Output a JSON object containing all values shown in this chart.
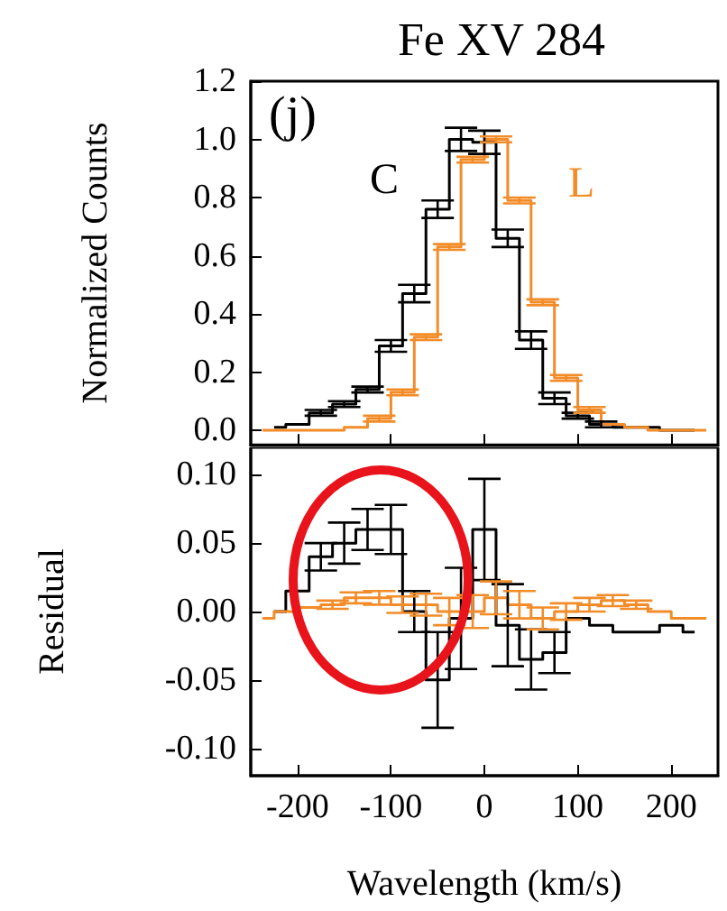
{
  "chart_data": [
    {
      "type": "step",
      "title": "Fe XV 284",
      "ylabel": "Normalized Counts",
      "annotations": [
        "(j)"
      ],
      "xlim": [
        -250,
        250
      ],
      "xticks": [
        -200,
        -100,
        0,
        100,
        200
      ],
      "ylim": [
        -0.05,
        1.2
      ],
      "yticks": [
        {
          "value": 0,
          "label": "0.0"
        },
        {
          "value": 0.2,
          "label": "0.2"
        },
        {
          "value": 0.4,
          "label": "0.4"
        },
        {
          "value": 0.6,
          "label": "0.6"
        },
        {
          "value": 0.8,
          "label": "0.8"
        },
        {
          "value": 1,
          "label": "1.0"
        },
        {
          "value": 1.2,
          "label": "1.2"
        }
      ],
      "tick_labels": "y",
      "legend": false,
      "grid": false,
      "marker": "none",
      "series": [
        {
          "name": "C",
          "color": "#000000",
          "x": [
            -225,
            -200,
            -175,
            -150,
            -125,
            -100,
            -75,
            -50,
            -25,
            0,
            25,
            50,
            75,
            100,
            125,
            150,
            175,
            200,
            225
          ],
          "values": [
            0.01,
            0.02,
            0.06,
            0.09,
            0.14,
            0.29,
            0.47,
            0.76,
            1.0,
            0.99,
            0.66,
            0.31,
            0.11,
            0.05,
            0.02,
            0.01,
            0.01,
            0.0,
            0.0
          ],
          "errors": [
            null,
            null,
            0.01,
            0.01,
            0.01,
            0.02,
            0.03,
            0.03,
            0.04,
            0.04,
            0.03,
            0.03,
            0.02,
            0.01,
            0.01,
            null,
            null,
            null,
            null
          ]
        },
        {
          "name": "L",
          "color": "#f28c28",
          "x": [
            -237.5,
            -212.5,
            -187.5,
            -162.5,
            -137.5,
            -112.5,
            -87.5,
            -62.5,
            -37.5,
            -12.5,
            12.5,
            37.5,
            62.5,
            87.5,
            112.5,
            137.5,
            162.5,
            187.5,
            212.5,
            237.5
          ],
          "values": [
            0.0,
            0.0,
            0.0,
            0.0,
            0.01,
            0.04,
            0.13,
            0.32,
            0.63,
            0.93,
            1.0,
            0.79,
            0.44,
            0.18,
            0.07,
            0.02,
            0.01,
            0.0,
            0.0,
            0.0
          ],
          "errors": [
            null,
            null,
            null,
            null,
            null,
            0.01,
            0.01,
            0.01,
            0.01,
            0.01,
            0.01,
            0.01,
            0.01,
            0.01,
            0.01,
            null,
            null,
            null,
            null,
            null
          ]
        }
      ]
    },
    {
      "type": "step",
      "xlabel": "Wavelength (km/s)",
      "ylabel": "Residual",
      "xlim": [
        -250,
        250
      ],
      "xticks": [
        -200,
        -100,
        0,
        100,
        200
      ],
      "ylim": [
        -0.12,
        0.12
      ],
      "yticks": [
        {
          "value": -0.1,
          "label": "-0.10"
        },
        {
          "value": -0.05,
          "label": "-0.05"
        },
        {
          "value": 0,
          "label": "0.00"
        },
        {
          "value": 0.05,
          "label": "0.05"
        },
        {
          "value": 0.1,
          "label": "0.10"
        }
      ],
      "legend": false,
      "grid": false,
      "marker": "none",
      "series": [
        {
          "color": "#000000",
          "x": [
            -225,
            -200,
            -175,
            -150,
            -125,
            -100,
            -75,
            -50,
            -25,
            0,
            25,
            50,
            75,
            100,
            125,
            150,
            175,
            200,
            225
          ],
          "values": [
            0.0,
            0.015,
            0.04,
            0.05,
            0.06,
            0.06,
            0.0,
            -0.05,
            -0.005,
            0.06,
            -0.01,
            -0.035,
            -0.03,
            -0.005,
            -0.01,
            -0.015,
            -0.015,
            -0.01,
            -0.015
          ],
          "errors": [
            null,
            null,
            0.01,
            0.015,
            0.015,
            0.018,
            0.015,
            0.035,
            0.037,
            0.037,
            0.03,
            0.022,
            0.015,
            null,
            null,
            null,
            null,
            null,
            null
          ]
        },
        {
          "color": "#f28c28",
          "x": [
            -237.5,
            -212.5,
            -187.5,
            -162.5,
            -137.5,
            -112.5,
            -87.5,
            -62.5,
            -37.5,
            -12.5,
            12.5,
            37.5,
            62.5,
            87.5,
            112.5,
            137.5,
            162.5,
            187.5,
            212.5,
            237.5
          ],
          "values": [
            -0.005,
            0.0,
            0.003,
            0.005,
            0.01,
            0.01,
            0.005,
            0.005,
            0.0,
            0.0,
            0.01,
            0.005,
            -0.005,
            0.0,
            0.005,
            0.008,
            0.005,
            0.0,
            -0.005,
            -0.005
          ],
          "errors": [
            null,
            null,
            null,
            0.003,
            0.004,
            0.005,
            0.006,
            0.008,
            0.01,
            0.012,
            0.012,
            0.01,
            0.008,
            0.006,
            0.005,
            0.004,
            0.003,
            null,
            null,
            null
          ]
        }
      ]
    }
  ]
}
